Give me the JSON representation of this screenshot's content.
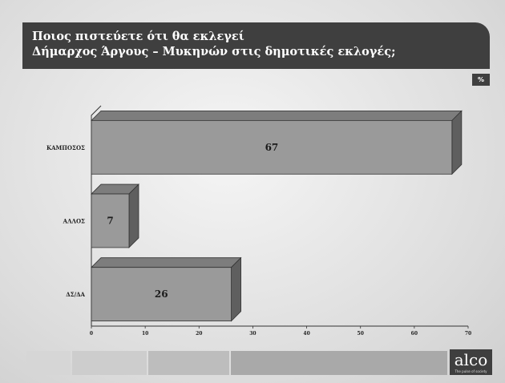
{
  "header": {
    "title_line1": "Ποιος πιστεύετε ότι θα εκλεγεί",
    "title_line2": "Δήμαρχος Άργους – Μυκηνών στις δημοτικές εκλογές;"
  },
  "unit_badge": "%",
  "chart_data": {
    "type": "bar",
    "orientation": "horizontal",
    "categories": [
      "ΚΑΜΠΟΣΟΣ",
      "ΑΛΛΟΣ",
      "ΔΣ/ΔΑ"
    ],
    "values": [
      67,
      7,
      26
    ],
    "xlim": [
      0,
      70
    ],
    "xticks": [
      0,
      10,
      20,
      30,
      40,
      50,
      60,
      70
    ],
    "title": "Ποιος πιστεύετε ότι θα εκλεγεί Δήμαρχος Άργους – Μυκηνών στις δημοτικές εκλογές;",
    "unit": "%",
    "grid": false,
    "colors": {
      "bar_front": "#9a9a9a",
      "bar_top": "#7d7d7d",
      "bar_side": "#5f5f5f"
    }
  },
  "footer": {
    "logo_text": "alco",
    "logo_tagline": "The pulse of society"
  },
  "colors": {
    "header_bg": "#3f3f3f",
    "header_text": "#ffffff"
  }
}
